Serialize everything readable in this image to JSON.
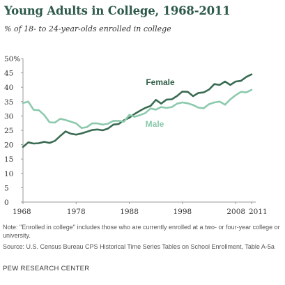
{
  "chart_data": {
    "type": "line",
    "title": "Young Adults in College, 1968-2011",
    "subtitle": "% of 18- to 24-year-olds enrolled in college",
    "xlabel": "",
    "ylabel": "",
    "ylim": [
      0,
      50
    ],
    "xlim": [
      1968,
      2011
    ],
    "y_ticks": [
      "0",
      "5",
      "10",
      "15",
      "20",
      "25",
      "30",
      "35",
      "40",
      "45",
      "50%"
    ],
    "x_ticks": [
      "1968",
      "1978",
      "1988",
      "1998",
      "2008",
      "2011"
    ],
    "grid": false,
    "x": [
      1968,
      1969,
      1970,
      1971,
      1972,
      1973,
      1974,
      1975,
      1976,
      1977,
      1978,
      1979,
      1980,
      1981,
      1982,
      1983,
      1984,
      1985,
      1986,
      1987,
      1988,
      1989,
      1990,
      1991,
      1992,
      1993,
      1994,
      1995,
      1996,
      1997,
      1998,
      1999,
      2000,
      2001,
      2002,
      2003,
      2004,
      2005,
      2006,
      2007,
      2008,
      2009,
      2010,
      2011
    ],
    "series": [
      {
        "name": "Female",
        "color": "#3a6b53",
        "values": [
          19.2,
          20.8,
          20.4,
          20.5,
          21.0,
          20.6,
          21.3,
          23.0,
          24.6,
          23.8,
          23.5,
          23.9,
          24.5,
          25.1,
          25.3,
          25.0,
          25.6,
          27.0,
          27.2,
          28.5,
          29.4,
          30.7,
          31.8,
          32.8,
          33.5,
          35.6,
          34.3,
          35.7,
          35.8,
          37.0,
          38.5,
          38.4,
          36.9,
          38.0,
          38.2,
          39.2,
          41.1,
          40.8,
          42.0,
          40.8,
          42.0,
          42.2,
          43.6,
          44.5
        ]
      },
      {
        "name": "Male",
        "color": "#8cc9ad",
        "values": [
          34.5,
          35.0,
          32.1,
          32.0,
          30.3,
          27.8,
          27.7,
          29.0,
          28.6,
          28.0,
          27.4,
          25.8,
          26.1,
          27.4,
          27.4,
          27.0,
          27.3,
          28.3,
          28.3,
          28.0,
          30.4,
          29.7,
          30.3,
          31.0,
          32.6,
          32.2,
          33.1,
          32.8,
          33.1,
          34.3,
          34.7,
          34.4,
          33.8,
          32.9,
          32.7,
          34.1,
          34.7,
          35.0,
          33.9,
          35.8,
          37.2,
          38.4,
          38.2,
          39.1
        ]
      }
    ]
  },
  "note": "Note: \"Enrolled in college\" includes those who are currently enrolled at a two- or four-year college or university.",
  "source": "Source: U.S. Census Bureau CPS  Historical Time Series Tables on School Enrollment, Table A-5a",
  "footer": "PEW RESEARCH CENTER"
}
